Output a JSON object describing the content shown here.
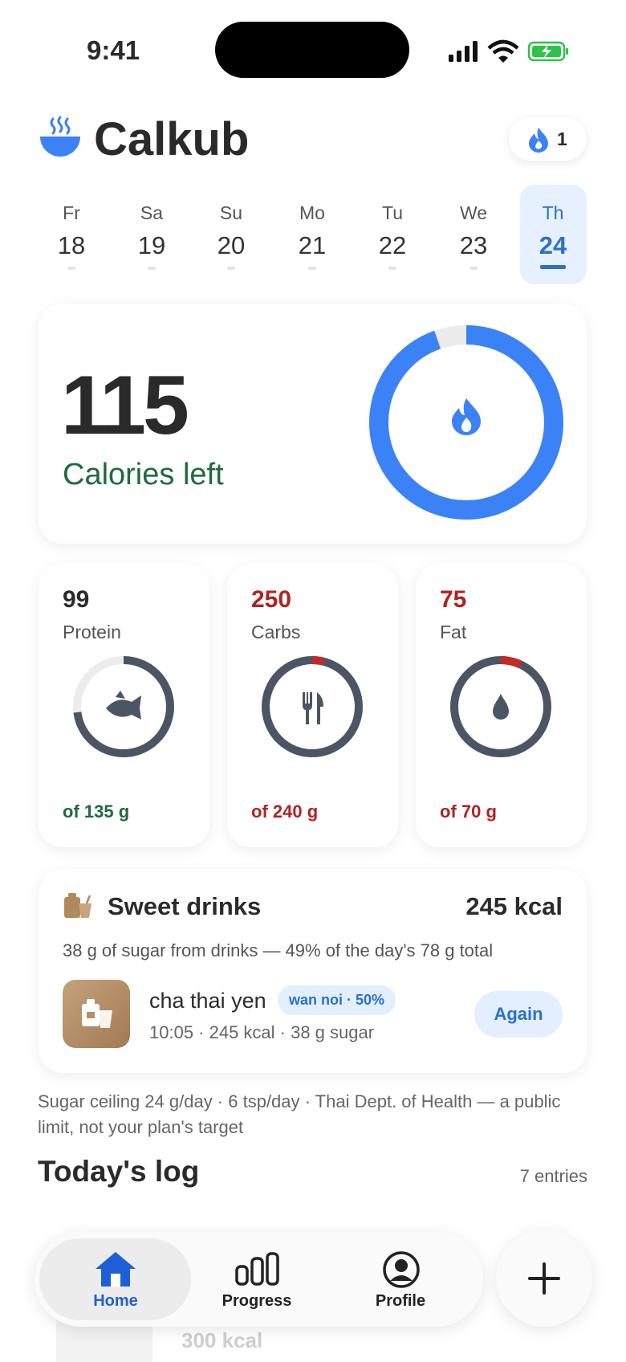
{
  "status_bar": {
    "time": "9:41"
  },
  "header": {
    "title": "Calkub",
    "streak": "1"
  },
  "days": [
    {
      "name": "Fr",
      "date": "18"
    },
    {
      "name": "Sa",
      "date": "19"
    },
    {
      "name": "Su",
      "date": "20"
    },
    {
      "name": "Mo",
      "date": "21"
    },
    {
      "name": "Tu",
      "date": "22"
    },
    {
      "name": "We",
      "date": "23"
    },
    {
      "name": "Th",
      "date": "24"
    }
  ],
  "calories": {
    "value": "115",
    "label": "Calories left"
  },
  "macros": [
    {
      "value": "99",
      "name": "Protein",
      "target": "of 135 g"
    },
    {
      "value": "250",
      "name": "Carbs",
      "target": "of 240 g"
    },
    {
      "value": "75",
      "name": "Fat",
      "target": "of 70 g"
    }
  ],
  "sweet_drinks": {
    "title": "Sweet drinks",
    "kcal": "245 kcal",
    "summary": "38 g of sugar from drinks — 49% of the day's 78 g total",
    "item": {
      "name": "cha thai yen",
      "badge": "wan noi · 50%",
      "meta": "10:05 · 245 kcal · 38 g sugar",
      "button": "Again"
    }
  },
  "note": "Sugar ceiling 24 g/day · 6 tsp/day · Thai Dept. of Health — a public limit, not your plan's target",
  "log": {
    "title": "Today's log",
    "count": "7 entries",
    "entry_kcal": "300 kcal"
  },
  "nav": {
    "home": "Home",
    "progress": "Progress",
    "profile": "Profile"
  }
}
